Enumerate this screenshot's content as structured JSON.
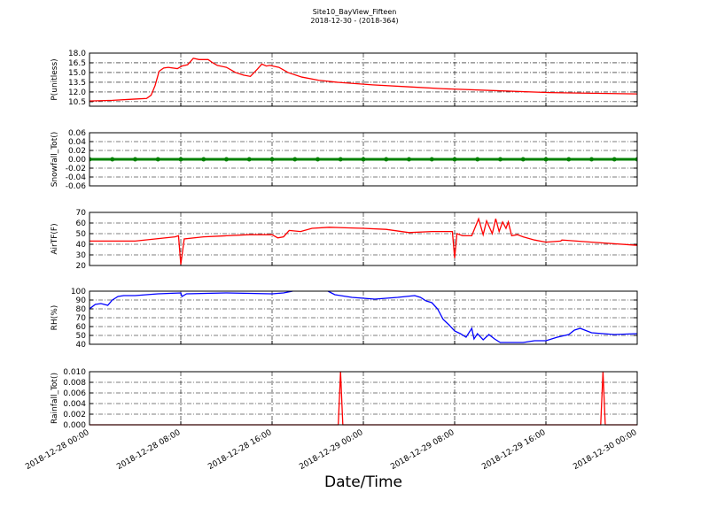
{
  "chart_data": [
    {
      "type": "line",
      "title": "Site10_BayView_Fifteen",
      "subtitle": "2018-12-30 - (2018-364)",
      "ylabel": "P(unitless)",
      "color": "#ff0000",
      "xlim": [
        "2018-12-28 00:00",
        "2018-12-30 00:00"
      ],
      "xticks": [
        "2018-12-28 00:00",
        "2018-12-28 08:00",
        "2018-12-28 16:00",
        "2018-12-29 00:00",
        "2018-12-29 08:00",
        "2018-12-29 16:00",
        "2018-12-30 00:00"
      ],
      "ylim": [
        9.8,
        18
      ],
      "yticks": [
        {
          "value": 10.5,
          "label": "10.5"
        },
        {
          "value": 12,
          "label": "12.0"
        },
        13.5,
        {
          "value": 15,
          "label": "15.0"
        },
        16.5,
        {
          "value": 18,
          "label": "18.0"
        }
      ],
      "grid": true,
      "x": [
        "2018-12-28 00:00",
        "2018-12-28 02:00",
        "2018-12-28 04:00",
        "2018-12-28 05:00",
        "2018-12-28 05:24",
        "2018-12-28 05:45",
        "2018-12-28 06:06",
        "2018-12-28 06:30",
        "2018-12-28 06:54",
        "2018-12-28 07:42",
        "2018-12-28 08:06",
        "2018-12-28 08:36",
        "2018-12-28 09:06",
        "2018-12-28 09:36",
        "2018-12-28 10:24",
        "2018-12-28 10:48",
        "2018-12-28 11:12",
        "2018-12-28 12:00",
        "2018-12-28 12:48",
        "2018-12-28 13:30",
        "2018-12-28 14:06",
        "2018-12-28 14:42",
        "2018-12-28 15:06",
        "2018-12-28 15:30",
        "2018-12-28 15:48",
        "2018-12-28 16:36",
        "2018-12-28 17:24",
        "2018-12-28 18:36",
        "2018-12-28 20:06",
        "2018-12-28 21:42",
        "2018-12-29 00:48",
        "2018-12-29 03:54",
        "2018-12-29 07:00",
        "2018-12-29 11:36",
        "2018-12-29 16:18",
        "2018-12-30 00:00"
      ],
      "values": [
        10.6,
        10.7,
        10.9,
        11.0,
        11.5,
        13.0,
        15.2,
        15.7,
        15.8,
        15.6,
        16.0,
        16.2,
        17.2,
        17.0,
        17.0,
        16.5,
        16.1,
        15.8,
        15.0,
        14.6,
        14.4,
        15.5,
        16.3,
        16.0,
        16.1,
        15.8,
        15.0,
        14.3,
        13.8,
        13.5,
        13.1,
        12.8,
        12.5,
        12.2,
        11.9,
        11.7
      ]
    },
    {
      "type": "line",
      "ylabel": "Snowfall_Tot()",
      "color": "#008000",
      "markers": true,
      "xlim": [
        "2018-12-28 00:00",
        "2018-12-30 00:00"
      ],
      "xticks": [
        "2018-12-28 00:00",
        "2018-12-28 08:00",
        "2018-12-28 16:00",
        "2018-12-29 00:00",
        "2018-12-29 08:00",
        "2018-12-29 16:00",
        "2018-12-30 00:00"
      ],
      "ylim": [
        -0.06,
        0.06
      ],
      "yticks": [
        -0.06,
        -0.04,
        -0.02,
        {
          "value": 0,
          "label": "0.00"
        },
        0.02,
        0.04,
        0.06
      ],
      "grid": true,
      "x": [
        "2018-12-28 00:00",
        "2018-12-28 02:00",
        "2018-12-28 04:00",
        "2018-12-28 06:00",
        "2018-12-28 08:00",
        "2018-12-28 10:00",
        "2018-12-28 12:00",
        "2018-12-28 14:00",
        "2018-12-28 16:00",
        "2018-12-28 18:00",
        "2018-12-28 20:00",
        "2018-12-28 22:00",
        "2018-12-29 00:00",
        "2018-12-29 02:00",
        "2018-12-29 04:00",
        "2018-12-29 06:00",
        "2018-12-29 08:00",
        "2018-12-29 10:00",
        "2018-12-29 12:00",
        "2018-12-29 14:00",
        "2018-12-29 16:00",
        "2018-12-29 18:00",
        "2018-12-29 20:00",
        "2018-12-29 22:00",
        "2018-12-30 00:00"
      ],
      "values": [
        0,
        0,
        0,
        0,
        0,
        0,
        0,
        0,
        0,
        0,
        0,
        0,
        0,
        0,
        0,
        0,
        0,
        0,
        0,
        0,
        0,
        0,
        0,
        0,
        0
      ]
    },
    {
      "type": "line",
      "ylabel": "AirTF(F)",
      "color": "#ff0000",
      "xlim": [
        "2018-12-28 00:00",
        "2018-12-30 00:00"
      ],
      "xticks": [
        "2018-12-28 00:00",
        "2018-12-28 08:00",
        "2018-12-28 16:00",
        "2018-12-29 00:00",
        "2018-12-29 08:00",
        "2018-12-29 16:00",
        "2018-12-30 00:00"
      ],
      "ylim": [
        20,
        70
      ],
      "yticks": [
        20,
        30,
        40,
        50,
        60,
        70
      ],
      "grid": true,
      "x": [
        "2018-12-28 00:00",
        "2018-12-28 04:00",
        "2018-12-28 07:30",
        "2018-12-28 07:48",
        "2018-12-28 08:00",
        "2018-12-28 08:18",
        "2018-12-28 10:00",
        "2018-12-28 12:00",
        "2018-12-28 14:00",
        "2018-12-28 16:00",
        "2018-12-28 16:30",
        "2018-12-28 17:00",
        "2018-12-28 17:30",
        "2018-12-28 18:30",
        "2018-12-28 19:30",
        "2018-12-28 21:00",
        "2018-12-29 00:00",
        "2018-12-29 02:00",
        "2018-12-29 04:00",
        "2018-12-29 06:00",
        "2018-12-29 07:48",
        "2018-12-29 08:00",
        "2018-12-29 08:12",
        "2018-12-29 08:42",
        "2018-12-29 09:30",
        "2018-12-29 10:06",
        "2018-12-29 10:30",
        "2018-12-29 10:48",
        "2018-12-29 11:18",
        "2018-12-29 11:36",
        "2018-12-29 11:54",
        "2018-12-29 12:12",
        "2018-12-29 12:30",
        "2018-12-29 12:42",
        "2018-12-29 13:00",
        "2018-12-29 13:30",
        "2018-12-29 14:00",
        "2018-12-29 15:00",
        "2018-12-29 16:00",
        "2018-12-29 17:18",
        "2018-12-29 17:24",
        "2018-12-29 20:00",
        "2018-12-30 00:00"
      ],
      "values": [
        43,
        43,
        47,
        48,
        21,
        45,
        47,
        48,
        49,
        49,
        46,
        47,
        53,
        52,
        55,
        56,
        55,
        54,
        51,
        52,
        52,
        27,
        50,
        48,
        48,
        64,
        49,
        62,
        50,
        64,
        52,
        61,
        55,
        61,
        48,
        49,
        47,
        44,
        42,
        43,
        44,
        42,
        39
      ]
    },
    {
      "type": "line",
      "ylabel": "RH(%)",
      "color": "#0000ff",
      "xlim": [
        "2018-12-28 00:00",
        "2018-12-30 00:00"
      ],
      "xticks": [
        "2018-12-28 00:00",
        "2018-12-28 08:00",
        "2018-12-28 16:00",
        "2018-12-29 00:00",
        "2018-12-29 08:00",
        "2018-12-29 16:00",
        "2018-12-30 00:00"
      ],
      "ylim": [
        40,
        100
      ],
      "yticks": [
        40,
        50,
        60,
        70,
        80,
        90,
        100
      ],
      "grid": true,
      "x": [
        "2018-12-28 00:00",
        "2018-12-28 00:30",
        "2018-12-28 01:00",
        "2018-12-28 01:36",
        "2018-12-28 02:00",
        "2018-12-28 02:30",
        "2018-12-28 03:00",
        "2018-12-28 04:00",
        "2018-12-28 05:00",
        "2018-12-28 06:00",
        "2018-12-28 08:00",
        "2018-12-28 08:06",
        "2018-12-28 08:30",
        "2018-12-28 12:00",
        "2018-12-28 16:00",
        "2018-12-28 17:00",
        "2018-12-28 17:48",
        "2018-12-28 19:00",
        "2018-12-28 20:54",
        "2018-12-28 21:30",
        "2018-12-28 23:00",
        "2018-12-29 01:00",
        "2018-12-29 03:00",
        "2018-12-29 04:30",
        "2018-12-29 05:00",
        "2018-12-29 05:30",
        "2018-12-29 06:00",
        "2018-12-29 06:30",
        "2018-12-29 07:00",
        "2018-12-29 07:30",
        "2018-12-29 08:00",
        "2018-12-29 08:30",
        "2018-12-29 09:00",
        "2018-12-29 09:30",
        "2018-12-29 09:42",
        "2018-12-29 10:00",
        "2018-12-29 10:30",
        "2018-12-29 11:00",
        "2018-12-29 11:30",
        "2018-12-29 12:00",
        "2018-12-29 14:00",
        "2018-12-29 15:00",
        "2018-12-29 16:00",
        "2018-12-29 17:00",
        "2018-12-29 18:00",
        "2018-12-29 18:30",
        "2018-12-29 19:00",
        "2018-12-29 20:00",
        "2018-12-29 22:00",
        "2018-12-30 00:00"
      ],
      "values": [
        80,
        85,
        86,
        84,
        90,
        94,
        95,
        95,
        96,
        97,
        98,
        94,
        97,
        98,
        97,
        98,
        100,
        null,
        100,
        96,
        93,
        91,
        93,
        95,
        93,
        89,
        87,
        80,
        68,
        62,
        55,
        52,
        48,
        58,
        46,
        52,
        45,
        51,
        46,
        42,
        42,
        44,
        44,
        48,
        51,
        56,
        58,
        53,
        51,
        52
      ]
    },
    {
      "type": "line",
      "ylabel": "Rainfall_Tot()",
      "xlabel": "Date/Time",
      "color": "#ff0000",
      "xlim": [
        "2018-12-28 00:00",
        "2018-12-30 00:00"
      ],
      "xticks": [
        "2018-12-28 00:00",
        "2018-12-28 08:00",
        "2018-12-28 16:00",
        "2018-12-29 00:00",
        "2018-12-29 08:00",
        "2018-12-29 16:00",
        "2018-12-30 00:00"
      ],
      "ylim": [
        0,
        0.01
      ],
      "yticks": [
        {
          "value": 0,
          "label": "0.000"
        },
        {
          "value": 0.002,
          "label": "0.002"
        },
        {
          "value": 0.004,
          "label": "0.004"
        },
        {
          "value": 0.006,
          "label": "0.006"
        },
        {
          "value": 0.008,
          "label": "0.008"
        },
        {
          "value": 0.01,
          "label": "0.010"
        }
      ],
      "grid": true,
      "x": [
        "2018-12-28 00:00",
        "2018-12-28 21:48",
        "2018-12-28 22:00",
        "2018-12-28 22:12",
        "2018-12-29 20:48",
        "2018-12-29 21:00",
        "2018-12-29 21:12",
        "2018-12-30 00:00"
      ],
      "values": [
        0,
        0,
        0.01,
        0,
        0,
        0.01,
        0,
        0
      ]
    }
  ]
}
